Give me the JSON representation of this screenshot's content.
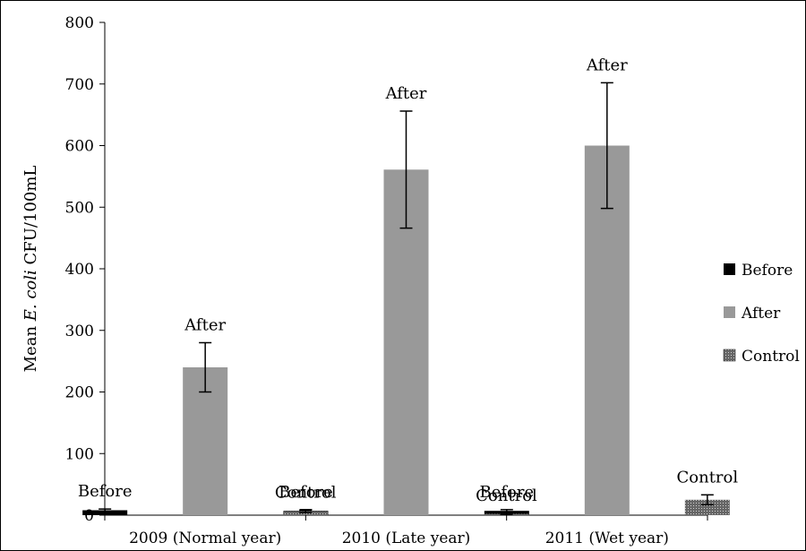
{
  "chart_data": {
    "type": "bar",
    "ylabel_prefix": "Mean ",
    "ylabel_italic": "E. coli",
    "ylabel_suffix": " CFU/100mL",
    "ylim": [
      0,
      800
    ],
    "yticks": [
      0,
      100,
      200,
      300,
      400,
      500,
      600,
      700,
      800
    ],
    "categories": [
      "2009 (Normal year)",
      "2010 (Late year)",
      "2011 (Wet year)"
    ],
    "series": [
      {
        "name": "Before",
        "values": [
          8,
          7,
          7
        ],
        "errors": [
          2,
          2,
          2
        ],
        "fill": "#000000",
        "pattern": "solid",
        "labels": [
          "Before",
          "Before",
          "Before"
        ]
      },
      {
        "name": "After",
        "values": [
          240,
          561,
          600
        ],
        "errors": [
          40,
          95,
          102
        ],
        "fill": "#999999",
        "pattern": "solid",
        "labels": [
          "After",
          "After",
          "After"
        ]
      },
      {
        "name": "Control",
        "values": [
          6,
          2,
          25
        ],
        "errors": [
          2,
          1,
          8
        ],
        "fill": "#555555",
        "pattern": "dots",
        "labels": [
          "Control",
          "Control",
          "Control"
        ]
      }
    ],
    "legend_position": "right",
    "grid": false
  }
}
